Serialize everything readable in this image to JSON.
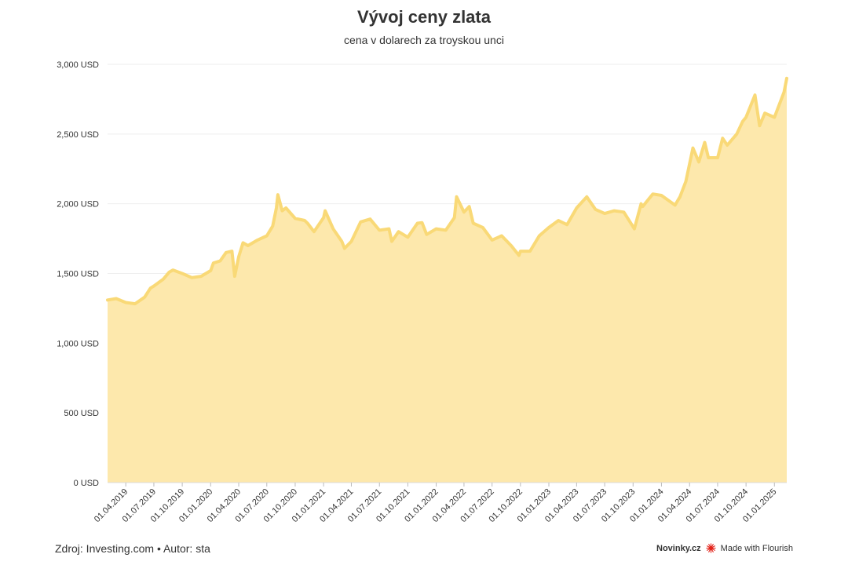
{
  "header": {
    "title": "Vývoj ceny zlata",
    "subtitle": "cena v dolarech za troyskou unci"
  },
  "footer": {
    "source": "Zdroj: Investing.com • Autor: sta",
    "brand": "Novinky.cz",
    "credit": "Made with Flourish",
    "credit_icon": "flourish-logo-icon"
  },
  "colors": {
    "fill": "#fde8ac",
    "line": "#f9d977",
    "grid": "#eeeeee",
    "axis_text": "#333333",
    "flourish_red": "#e3241b"
  },
  "chart_data": {
    "type": "area",
    "title": "Vývoj ceny zlata",
    "subtitle": "cena v dolarech za troyskou unci",
    "ylim": [
      0,
      3000
    ],
    "y_ticks": [
      0,
      500,
      1000,
      1500,
      2000,
      2500,
      3000
    ],
    "y_tick_labels": [
      "0 USD",
      "500 USD",
      "1,000 USD",
      "1,500 USD",
      "2,000 USD",
      "2,500 USD",
      "3,000 USD"
    ],
    "xlim": [
      "2019-02-01",
      "2025-02-10"
    ],
    "x_ticks": [
      "2019-04-01",
      "2019-07-01",
      "2019-10-01",
      "2020-01-01",
      "2020-04-01",
      "2020-07-01",
      "2020-10-01",
      "2021-01-01",
      "2021-04-01",
      "2021-07-01",
      "2021-10-01",
      "2022-01-01",
      "2022-04-01",
      "2022-07-01",
      "2022-10-01",
      "2023-01-01",
      "2023-04-01",
      "2023-07-01",
      "2023-10-01",
      "2024-01-01",
      "2024-04-01",
      "2024-07-01",
      "2024-10-01",
      "2025-01-01"
    ],
    "x_tick_labels": [
      "01.04.2019",
      "01.07.2019",
      "01.10.2019",
      "01.01.2020",
      "01.04.2020",
      "01.07.2020",
      "01.10.2020",
      "01.01.2021",
      "01.04.2021",
      "01.07.2021",
      "01.10.2021",
      "01.01.2022",
      "01.04.2022",
      "01.07.2022",
      "01.10.2022",
      "01.01.2023",
      "01.04.2023",
      "01.07.2023",
      "01.10.2023",
      "01.01.2024",
      "01.04.2024",
      "01.07.2024",
      "01.10.2024",
      "01.01.2025"
    ],
    "grid": true,
    "series": [
      {
        "x": [
          "2019-02-01",
          "2019-03-01",
          "2019-04-01",
          "2019-05-01",
          "2019-06-01",
          "2019-06-20",
          "2019-07-01",
          "2019-08-01",
          "2019-08-20",
          "2019-09-01",
          "2019-10-01",
          "2019-11-01",
          "2019-12-01",
          "2020-01-01",
          "2020-01-10",
          "2020-02-01",
          "2020-02-20",
          "2020-03-10",
          "2020-03-19",
          "2020-04-01",
          "2020-04-15",
          "2020-05-01",
          "2020-06-01",
          "2020-07-01",
          "2020-07-20",
          "2020-08-01",
          "2020-08-06",
          "2020-08-20",
          "2020-09-01",
          "2020-10-01",
          "2020-11-01",
          "2020-11-10",
          "2020-12-01",
          "2021-01-01",
          "2021-01-06",
          "2021-02-01",
          "2021-03-01",
          "2021-03-10",
          "2021-04-01",
          "2021-05-01",
          "2021-06-01",
          "2021-07-01",
          "2021-08-01",
          "2021-08-10",
          "2021-09-01",
          "2021-10-01",
          "2021-11-01",
          "2021-11-16",
          "2021-12-01",
          "2022-01-01",
          "2022-02-01",
          "2022-03-01",
          "2022-03-08",
          "2022-04-01",
          "2022-04-18",
          "2022-05-01",
          "2022-06-01",
          "2022-07-01",
          "2022-08-01",
          "2022-09-01",
          "2022-09-26",
          "2022-10-01",
          "2022-11-01",
          "2022-12-01",
          "2023-01-01",
          "2023-02-01",
          "2023-03-01",
          "2023-04-01",
          "2023-05-04",
          "2023-06-01",
          "2023-07-01",
          "2023-08-01",
          "2023-09-01",
          "2023-10-05",
          "2023-10-27",
          "2023-11-01",
          "2023-12-04",
          "2024-01-01",
          "2024-02-14",
          "2024-03-01",
          "2024-03-20",
          "2024-04-12",
          "2024-05-01",
          "2024-05-20",
          "2024-06-01",
          "2024-07-01",
          "2024-07-17",
          "2024-08-01",
          "2024-09-01",
          "2024-09-20",
          "2024-10-01",
          "2024-10-30",
          "2024-11-14",
          "2024-12-01",
          "2025-01-01",
          "2025-02-01",
          "2025-02-10"
        ],
        "values": [
          1310,
          1320,
          1292,
          1283,
          1330,
          1395,
          1410,
          1460,
          1510,
          1525,
          1500,
          1470,
          1480,
          1520,
          1575,
          1590,
          1650,
          1660,
          1480,
          1620,
          1720,
          1700,
          1740,
          1770,
          1840,
          1970,
          2065,
          1950,
          1970,
          1895,
          1880,
          1860,
          1800,
          1900,
          1950,
          1820,
          1730,
          1680,
          1730,
          1870,
          1890,
          1810,
          1820,
          1730,
          1800,
          1760,
          1860,
          1865,
          1780,
          1820,
          1810,
          1900,
          2050,
          1940,
          1980,
          1860,
          1830,
          1740,
          1770,
          1700,
          1630,
          1660,
          1660,
          1770,
          1830,
          1880,
          1850,
          1970,
          2050,
          1960,
          1930,
          1950,
          1940,
          1820,
          2000,
          1980,
          2070,
          2060,
          1990,
          2050,
          2160,
          2400,
          2300,
          2440,
          2330,
          2330,
          2470,
          2420,
          2500,
          2590,
          2620,
          2780,
          2560,
          2650,
          2620,
          2800,
          2900
        ]
      }
    ]
  }
}
